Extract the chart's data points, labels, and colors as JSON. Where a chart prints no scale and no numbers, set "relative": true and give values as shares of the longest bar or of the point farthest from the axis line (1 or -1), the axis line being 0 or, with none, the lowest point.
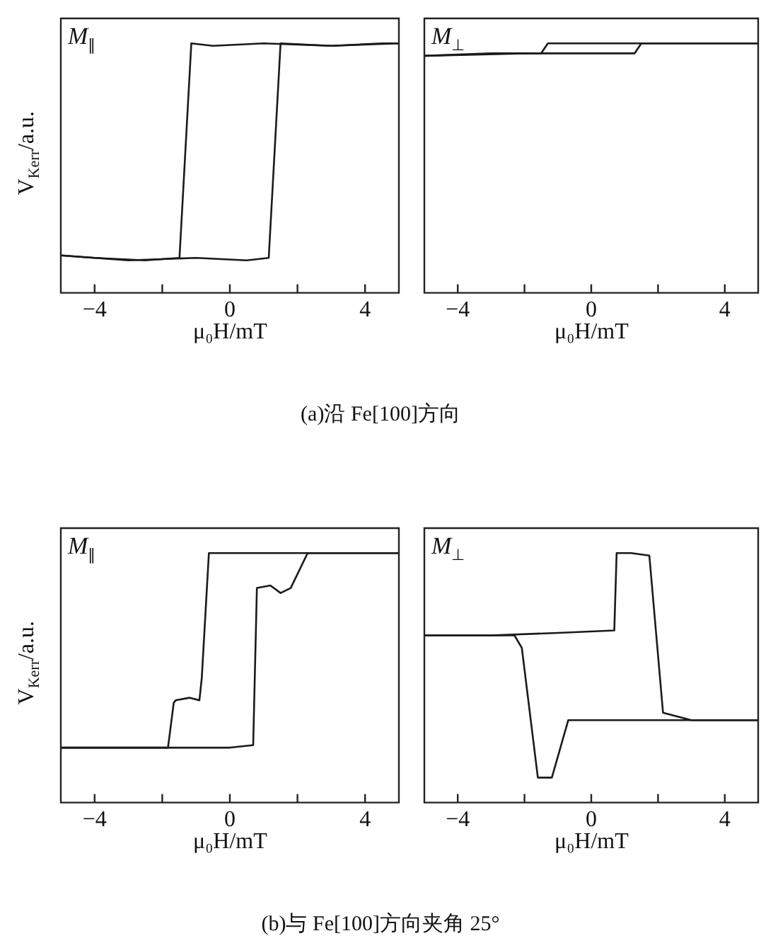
{
  "chart_data": [
    {
      "type": "line",
      "title": "M$_{∥}$",
      "ylabel": "V$_{Kerr}$/a.u.",
      "xlabel": "μ₀H/mT",
      "relative": true,
      "tick_labels": "x",
      "marker": "none",
      "xlim": [
        -5,
        5
      ],
      "xticks": [
        {
          "value": -4,
          "label": "−4"
        },
        {
          "value": -2,
          "label": null
        },
        {
          "value": 0,
          "label": "0"
        },
        {
          "value": 2,
          "label": null
        },
        {
          "value": 4,
          "label": "4"
        }
      ],
      "annotations": [
        "(a)沿 Fe[100]方向"
      ],
      "series": [
        {
          "color": "#1a1a1a",
          "x": [
            5,
            3,
            1,
            -0.5,
            -1.14,
            -1.49,
            -2.5,
            -4,
            -5
          ],
          "values": [
            1,
            0.99,
            1,
            0.99,
            1,
            0.14,
            0.13,
            0.14,
            0.15
          ]
        },
        {
          "color": "#1a1a1a",
          "x": [
            -5,
            -3,
            -1,
            0.5,
            1.15,
            1.5,
            3,
            4.5,
            5
          ],
          "values": [
            0.15,
            0.13,
            0.14,
            0.13,
            0.14,
            1,
            0.99,
            1,
            1
          ]
        }
      ]
    },
    {
      "type": "line",
      "title": "M$_{⊥}$",
      "xlabel": "μ₀H/mT",
      "relative": true,
      "tick_labels": "x",
      "marker": "none",
      "xlim": [
        -5,
        5
      ],
      "xticks": [
        {
          "value": -4,
          "label": "−4"
        },
        {
          "value": -2,
          "label": null
        },
        {
          "value": 0,
          "label": "0"
        },
        {
          "value": 2,
          "label": null
        },
        {
          "value": 4,
          "label": "4"
        }
      ],
      "series": [
        {
          "color": "#1a1a1a",
          "x": [
            5,
            2,
            -1.3,
            -1.5,
            -3,
            -5
          ],
          "values": [
            1,
            1,
            1,
            0.96,
            0.96,
            0.95
          ]
        },
        {
          "color": "#1a1a1a",
          "x": [
            -5,
            -2,
            1.3,
            1.5,
            3,
            5
          ],
          "values": [
            0.95,
            0.96,
            0.96,
            1,
            1,
            1
          ]
        }
      ]
    },
    {
      "type": "line",
      "title": "M$_{∥}$",
      "ylabel": "V$_{Kerr}$/a.u.",
      "xlabel": "μ₀H/mT",
      "relative": true,
      "tick_labels": "x",
      "marker": "none",
      "xlim": [
        -5,
        5
      ],
      "xticks": [
        {
          "value": -4,
          "label": "−4"
        },
        {
          "value": -2,
          "label": null
        },
        {
          "value": 0,
          "label": "0"
        },
        {
          "value": 2,
          "label": null
        },
        {
          "value": 4,
          "label": "4"
        }
      ],
      "annotations": [
        "(b)与 Fe[100]方向夹角 25°"
      ],
      "series": [
        {
          "color": "#1a1a1a",
          "x": [
            5,
            2,
            0,
            -0.62,
            -0.83,
            -0.9,
            -1.2,
            -1.6,
            -1.66,
            -1.83,
            -3,
            -5
          ],
          "values": [
            1,
            1,
            1,
            1,
            0.5,
            0.41,
            0.42,
            0.41,
            0.4,
            0.22,
            0.22,
            0.22
          ]
        },
        {
          "color": "#1a1a1a",
          "x": [
            -5,
            -2,
            0,
            0.69,
            0.8,
            1.2,
            1.5,
            1.8,
            2.3,
            3,
            5
          ],
          "values": [
            0.22,
            0.22,
            0.22,
            0.23,
            0.86,
            0.87,
            0.84,
            0.86,
            1,
            1,
            1
          ]
        }
      ]
    },
    {
      "type": "line",
      "title": "M$_{⊥}$",
      "xlabel": "μ₀H/mT",
      "relative": true,
      "tick_labels": "x",
      "marker": "none",
      "xlim": [
        -5,
        5
      ],
      "xticks": [
        {
          "value": -4,
          "label": "−4"
        },
        {
          "value": -2,
          "label": null
        },
        {
          "value": 0,
          "label": "0"
        },
        {
          "value": 2,
          "label": null
        },
        {
          "value": 4,
          "label": "4"
        }
      ],
      "series": [
        {
          "color": "#1a1a1a",
          "x": [
            -5,
            -3,
            -1,
            0.69,
            0.76,
            1.2,
            1.74,
            2.15,
            3,
            5
          ],
          "values": [
            0.67,
            0.67,
            0.68,
            0.69,
            1,
            1,
            0.99,
            0.36,
            0.33,
            0.33
          ]
        },
        {
          "color": "#1a1a1a",
          "x": [
            5,
            3,
            1,
            -0.69,
            -1.18,
            -1.6,
            -2.08,
            -2.3,
            -3.5,
            -5
          ],
          "values": [
            0.33,
            0.33,
            0.33,
            0.33,
            0.1,
            0.1,
            0.62,
            0.67,
            0.67,
            0.67
          ]
        }
      ]
    }
  ]
}
